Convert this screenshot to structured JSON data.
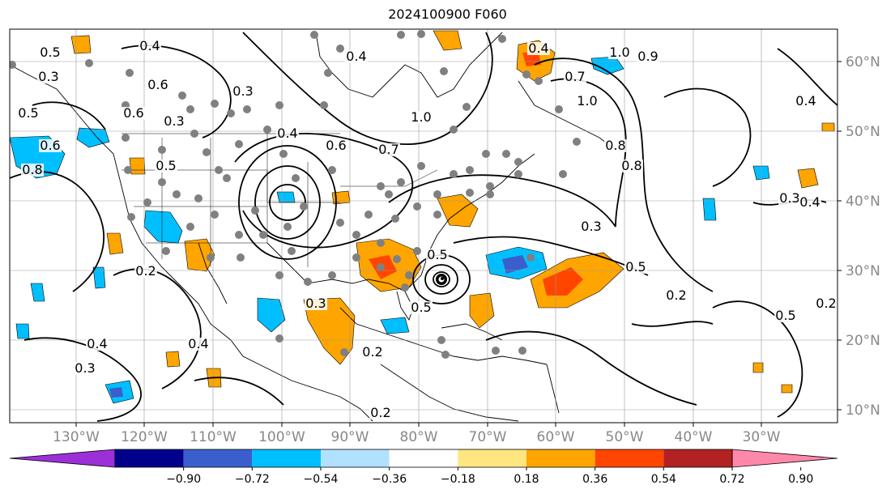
{
  "title": "2024100900 F060",
  "lon_labels": [
    "130°W",
    "120°W",
    "110°W",
    "100°W",
    "90°W",
    "80°W",
    "70°W",
    "60°W",
    "50°W",
    "40°W",
    "30°W"
  ],
  "lat_labels": [
    "60°N",
    "50°N",
    "40°N",
    "30°N",
    "20°N",
    "10°N"
  ],
  "colorbar": {
    "ticks": [
      "−0.90",
      "−0.72",
      "−0.54",
      "−0.36",
      "−0.18",
      "0.18",
      "0.36",
      "0.54",
      "0.72",
      "0.90"
    ],
    "colors": [
      "#9b30d9",
      "#00008b",
      "#3a5fcd",
      "#00bfff",
      "#b0e2ff",
      "#ffffff",
      "#ffe680",
      "#ffa500",
      "#ff4500",
      "#b22222",
      "#ff88aa"
    ]
  },
  "contour_labels": [
    "0.5",
    "0.4",
    "0.3",
    "0.6",
    "0.8",
    "0.6",
    "0.5",
    "0.3",
    "0.6",
    "0.4",
    "0.3",
    "0.5",
    "0.4",
    "1.0",
    "0.8",
    "0.7",
    "0.6",
    "0.5",
    "1.0",
    "0.4",
    "1.0",
    "0.9",
    "0.7",
    "0.4",
    "0.8",
    "0.3",
    "0.3",
    "0.4",
    "0.5",
    "0.2",
    "0.2",
    "0.4",
    "0.3",
    "0.2",
    "0.4",
    "0.3",
    "0.5",
    "0.2",
    "0.5",
    "0.2"
  ],
  "storm_marker": "hurricane-center"
}
